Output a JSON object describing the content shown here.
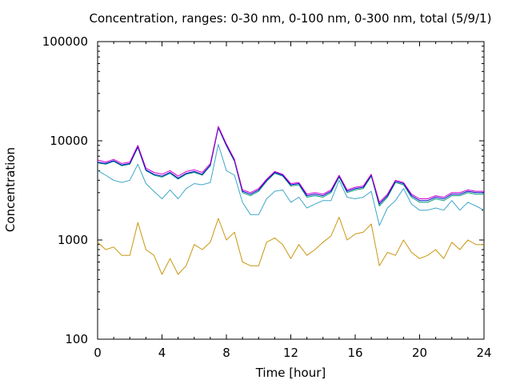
{
  "chart_data": {
    "type": "line",
    "title": "Concentration, ranges: 0-30 nm, 0-100 nm, 0-300 nm, total (5/9/1)",
    "xlabel": "Time [hour]",
    "ylabel": "Concentration",
    "xlim": [
      0,
      24
    ],
    "ylim": [
      100,
      100000
    ],
    "yscale": "log",
    "x_ticks": [
      "0",
      "4",
      "8",
      "12",
      "16",
      "20",
      "24"
    ],
    "y_ticks": [
      "100",
      "1000",
      "10000",
      "100000"
    ],
    "grid": false,
    "legend": "none",
    "x": [
      0,
      0.5,
      1,
      1.5,
      2,
      2.5,
      3,
      3.5,
      4,
      4.5,
      5,
      5.5,
      6,
      6.5,
      7,
      7.5,
      8,
      8.5,
      9,
      9.5,
      10,
      10.5,
      11,
      11.5,
      12,
      12.5,
      13,
      13.5,
      14,
      14.5,
      15,
      15.5,
      16,
      16.5,
      17,
      17.5,
      18,
      18.5,
      19,
      19.5,
      20,
      20.5,
      21,
      21.5,
      22,
      22.5,
      23,
      23.5,
      24
    ],
    "series": [
      {
        "color": "#c8960f",
        "values": [
          950,
          800,
          850,
          700,
          700,
          1500,
          800,
          700,
          450,
          650,
          450,
          550,
          900,
          800,
          950,
          1650,
          1000,
          1200,
          600,
          550,
          550,
          950,
          1050,
          900,
          650,
          900,
          700,
          800,
          950,
          1100,
          1700,
          1000,
          1150,
          1200,
          1450,
          550,
          750,
          700,
          1000,
          750,
          650,
          700,
          800,
          650,
          950,
          800,
          1000,
          900,
          900
        ]
      },
      {
        "color": "#3fa7c8",
        "values": [
          5000,
          4500,
          4000,
          3800,
          4000,
          5800,
          3700,
          3100,
          2600,
          3200,
          2600,
          3300,
          3700,
          3600,
          3800,
          9200,
          5000,
          4500,
          2400,
          1800,
          1800,
          2600,
          3100,
          3200,
          2400,
          2700,
          2100,
          2300,
          2500,
          2500,
          4000,
          2700,
          2600,
          2700,
          3100,
          1400,
          2100,
          2500,
          3300,
          2300,
          2000,
          2000,
          2100,
          2000,
          2500,
          2000,
          2400,
          2200,
          2000
        ]
      },
      {
        "color": "#009e73",
        "values": [
          6000,
          5800,
          6200,
          5600,
          5800,
          8600,
          5000,
          4500,
          4300,
          4700,
          4100,
          4600,
          4800,
          4500,
          5600,
          13500,
          8900,
          6200,
          3000,
          2800,
          3100,
          3900,
          4700,
          4400,
          3500,
          3600,
          2700,
          2800,
          2700,
          3000,
          4300,
          3000,
          3200,
          3300,
          4400,
          2200,
          2700,
          3800,
          3600,
          2700,
          2400,
          2400,
          2600,
          2500,
          2800,
          2800,
          3000,
          2900,
          2900
        ]
      },
      {
        "color": "#0000cc",
        "values": [
          6100,
          5900,
          6300,
          5700,
          5900,
          8700,
          5100,
          4600,
          4400,
          4800,
          4200,
          4700,
          4900,
          4600,
          5700,
          13600,
          9000,
          6300,
          3100,
          2900,
          3200,
          4000,
          4800,
          4500,
          3600,
          3700,
          2800,
          2900,
          2800,
          3100,
          4400,
          3100,
          3300,
          3400,
          4500,
          2300,
          2800,
          3900,
          3700,
          2800,
          2500,
          2500,
          2700,
          2600,
          2900,
          2900,
          3100,
          3000,
          3000
        ]
      },
      {
        "color": "#cc00cc",
        "values": [
          6400,
          6100,
          6500,
          5900,
          6100,
          9000,
          5300,
          4800,
          4600,
          5000,
          4400,
          4900,
          5100,
          4800,
          5900,
          14000,
          9300,
          6500,
          3200,
          3000,
          3300,
          4100,
          4900,
          4600,
          3700,
          3800,
          2900,
          3000,
          2900,
          3200,
          4500,
          3200,
          3400,
          3500,
          4600,
          2400,
          2900,
          4000,
          3800,
          2900,
          2600,
          2600,
          2800,
          2700,
          3000,
          3000,
          3200,
          3100,
          3100
        ]
      }
    ]
  }
}
